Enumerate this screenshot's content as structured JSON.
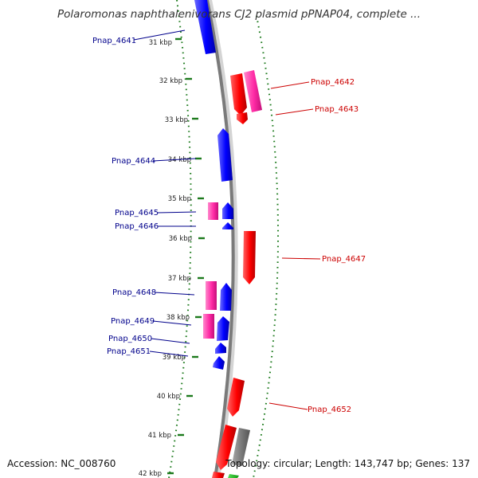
{
  "title": "Polaromonas naphthalenivorans CJ2 plasmid pPNAP04, complete ...",
  "accession": "Accession: NC_008760",
  "summary": "Topology: circular; Length: 143,747 bp; Genes: 137",
  "colors": {
    "backbone": "#7a7a7a",
    "gc_ring": "#1c7a1c",
    "plus_strand": "#ff0000",
    "minus_strand": "#0000ff",
    "plus_label": "#cc0000",
    "minus_label": "#00008b",
    "rna": "#ff33aa",
    "pseudo": "#7a7a7a",
    "other": "#22aa22"
  },
  "ticks": [
    {
      "label": "31 kbp"
    },
    {
      "label": "32 kbp"
    },
    {
      "label": "33 kbp"
    },
    {
      "label": "34 kbp"
    },
    {
      "label": "35 kbp"
    },
    {
      "label": "36 kbp"
    },
    {
      "label": "37 kbp"
    },
    {
      "label": "38 kbp"
    },
    {
      "label": "39 kbp"
    },
    {
      "label": "40 kbp"
    },
    {
      "label": "41 kbp"
    },
    {
      "label": "42 kbp"
    }
  ],
  "labels": {
    "Pnap_4641": "Pnap_4641",
    "Pnap_4642": "Pnap_4642",
    "Pnap_4643": "Pnap_4643",
    "Pnap_4644": "Pnap_4644",
    "Pnap_4645": "Pnap_4645",
    "Pnap_4646": "Pnap_4646",
    "Pnap_4647": "Pnap_4647",
    "Pnap_4648": "Pnap_4648",
    "Pnap_4649": "Pnap_4649",
    "Pnap_4650": "Pnap_4650",
    "Pnap_4651": "Pnap_4651",
    "Pnap_4652": "Pnap_4652"
  }
}
